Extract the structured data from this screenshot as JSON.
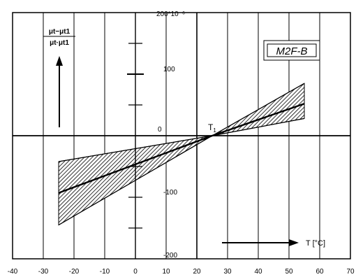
{
  "chart_data": {
    "type": "area",
    "title": "",
    "badge": "M2F-B",
    "ylabel_numerator": "μt−μt1",
    "ylabel_denominator": "μt·μt1",
    "y_unit_label": "200*10⁻⁶",
    "reference_point": {
      "label": "T",
      "label_subscript": "1",
      "x": 25,
      "y": 0
    },
    "xlabel": "T [°C]",
    "xlim": [
      -40,
      70
    ],
    "ylim": [
      -200,
      200
    ],
    "x_ticks": [
      -40,
      -30,
      -20,
      -10,
      0,
      10,
      20,
      30,
      40,
      50,
      60,
      70
    ],
    "x_tick_labels": [
      "-40",
      "-30",
      "-20",
      "-10",
      "0",
      "10",
      "20",
      "30",
      "40",
      "50",
      "60",
      "70"
    ],
    "y_tick_labels": [
      {
        "value": 100,
        "label": "100"
      },
      {
        "value": 0,
        "label": "0"
      },
      {
        "value": -100,
        "label": "-100"
      },
      {
        "value": -200,
        "label": "-200"
      }
    ],
    "y_minor_ticks": [
      150,
      100,
      50,
      -50,
      -100,
      -150
    ],
    "grid": true,
    "series": [
      {
        "upper": [
          {
            "x": -25,
            "y": -42
          },
          {
            "x": 25,
            "y": 0
          },
          {
            "x": 55,
            "y": 85
          }
        ],
        "middle": [
          {
            "x": -25,
            "y": -93
          },
          {
            "x": 25,
            "y": 0
          },
          {
            "x": 55,
            "y": 52
          }
        ],
        "lower": [
          {
            "x": -25,
            "y": -145
          },
          {
            "x": 25,
            "y": 0
          },
          {
            "x": 55,
            "y": 28
          }
        ]
      }
    ]
  }
}
